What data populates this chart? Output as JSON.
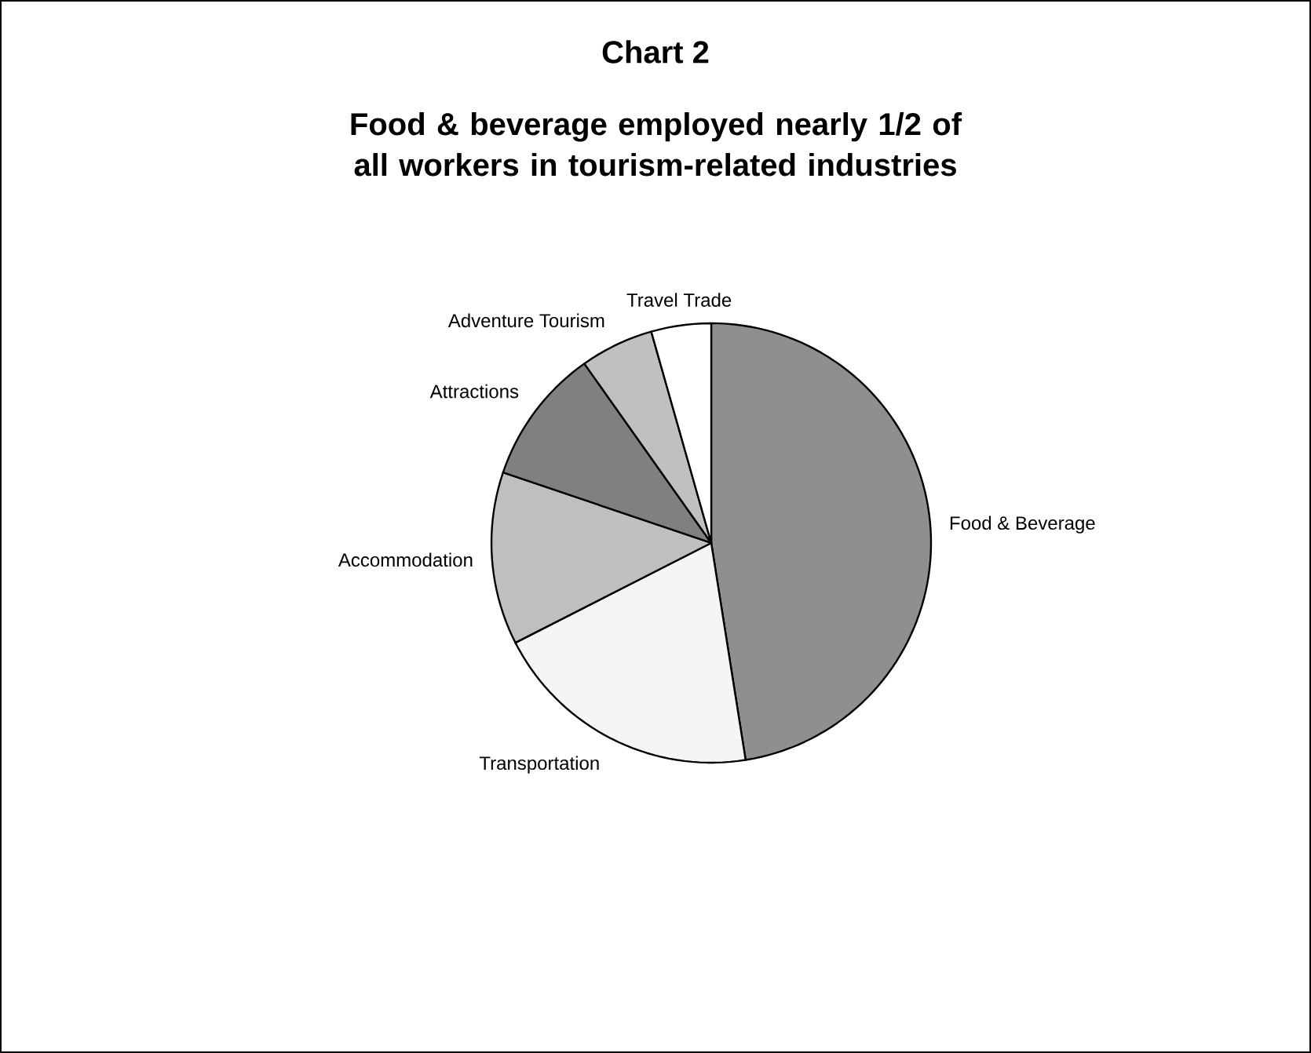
{
  "chart_data": {
    "type": "pie",
    "title": "Chart 2",
    "subtitle": "Food & beverage employed nearly 1/2 of all workers in tourism-related industries",
    "categories": [
      "Food & Beverage",
      "Transportation",
      "Accommodation",
      "Attractions",
      "Adventure Tourism",
      "Travel Trade"
    ],
    "values": [
      47.5,
      20.0,
      12.7,
      10.0,
      5.4,
      4.4
    ],
    "colors": [
      "#8f8f8f",
      "#f5f5f5",
      "#bfbfbf",
      "#808080",
      "#c0c0c0",
      "#ffffff"
    ]
  }
}
